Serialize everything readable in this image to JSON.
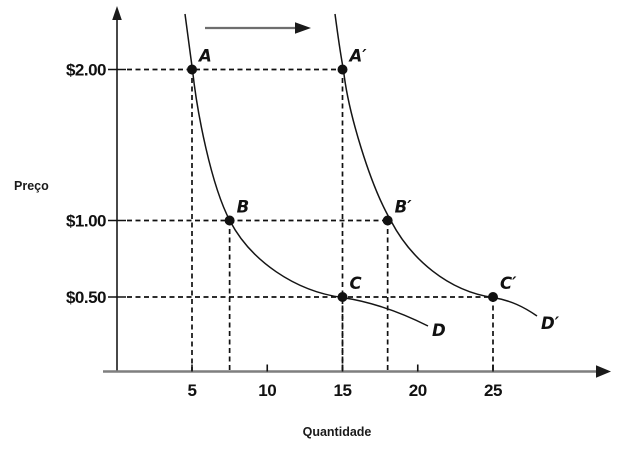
{
  "chart_data": {
    "type": "line",
    "title": "",
    "xlabel": "Quantidade",
    "ylabel": "Preço",
    "x_ticks": [
      5,
      10,
      15,
      20,
      25
    ],
    "y_ticks": [
      {
        "label": "$2.00",
        "value": 2
      },
      {
        "label": "$1.00",
        "value": 1
      },
      {
        "label": "$0.50",
        "value": 0.5
      }
    ],
    "xlim": [
      0,
      29
    ],
    "grid": "off",
    "legend": "none",
    "series": [
      {
        "name": "D",
        "points": [
          {
            "label": "A",
            "quantity": 5,
            "price": 2
          },
          {
            "label": "B",
            "quantity": 7.5,
            "price": 1
          },
          {
            "label": "C",
            "quantity": 15,
            "price": 0.5
          }
        ]
      },
      {
        "name": "D′",
        "points": [
          {
            "label": "A′",
            "quantity": 15,
            "price": 2
          },
          {
            "label": "B′",
            "quantity": 18,
            "price": 1
          },
          {
            "label": "C′",
            "quantity": 25,
            "price": 0.5
          }
        ]
      }
    ],
    "annotations": [
      {
        "type": "arrow",
        "direction": "right",
        "meaning": "demand curve shifts right from D to D′"
      }
    ],
    "colors": {
      "curve": "#151515",
      "x_axis": "#7f7f7f",
      "y_axis": "#1a1a1a",
      "dashed_guides": "#111111",
      "shift_arrow": "#6e6e6e"
    }
  }
}
